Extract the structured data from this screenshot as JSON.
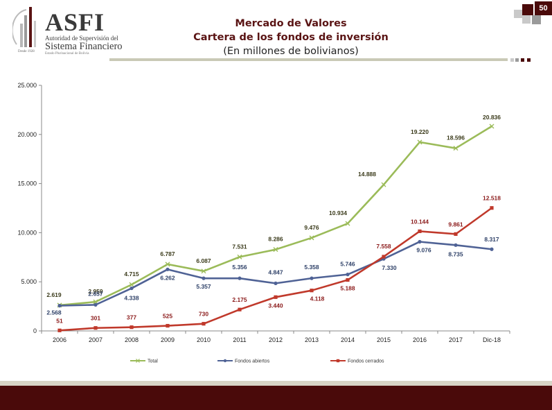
{
  "header": {
    "logo_main": "ASFI",
    "logo_sub1": "Autoridad de Supervisión del",
    "logo_sub2": "Sistema Financiero",
    "logo_sub3": "Estado Plurinacional de Bolivia",
    "logo_year": "Desde 1928",
    "title": "Mercado de Valores",
    "subtitle": "Cartera de los fondos de inversión",
    "units": "(En millones de bolivianos)",
    "page_number": "50"
  },
  "colors": {
    "total": "#9bbb59",
    "abiertos": "#4f6295",
    "cerrados": "#c0392b",
    "brand_dark": "#4a0a0a"
  },
  "chart_data": {
    "type": "line",
    "categories": [
      "2006",
      "2007",
      "2008",
      "2009",
      "2010",
      "2011",
      "2012",
      "2013",
      "2014",
      "2015",
      "2016",
      "2017",
      "Dic-18"
    ],
    "ylim": [
      0,
      25000
    ],
    "yticks": [
      0,
      5000,
      10000,
      15000,
      20000,
      25000
    ],
    "ytick_labels": [
      "0",
      "5.000",
      "10.000",
      "15.000",
      "20.000",
      "25.000"
    ],
    "grid": false,
    "legend_position": "bottom",
    "series": [
      {
        "name": "Total",
        "key": "total",
        "values": [
          2619,
          2959,
          4715,
          6787,
          6087,
          7531,
          8286,
          9476,
          10934,
          14888,
          19220,
          18596,
          20836
        ],
        "labels": [
          "2.619",
          "2.959",
          "4.715",
          "6.787",
          "6.087",
          "7.531",
          "8.286",
          "9.476",
          "10.934",
          "14.888",
          "19.220",
          "18.596",
          "20.836"
        ],
        "label_color": "#3a3a1a"
      },
      {
        "name": "Fondos abiertos",
        "key": "abiertos",
        "values": [
          2568,
          2657,
          4338,
          6262,
          5357,
          5356,
          4847,
          5358,
          5746,
          7330,
          9076,
          8735,
          8317
        ],
        "labels": [
          "2.568",
          "2.657",
          "4.338",
          "6.262",
          "5.357",
          "5.356",
          "4.847",
          "5.358",
          "5.746",
          "7.330",
          "9.076",
          "8.735",
          "8.317"
        ],
        "label_color": "#2f4168"
      },
      {
        "name": "Fondos cerrados",
        "key": "cerrados",
        "values": [
          51,
          301,
          377,
          525,
          730,
          2175,
          3440,
          4118,
          5188,
          7558,
          10144,
          9861,
          12518
        ],
        "labels": [
          "51",
          "301",
          "377",
          "525",
          "730",
          "2.175",
          "3.440",
          "4.118",
          "5.188",
          "7.558",
          "10.144",
          "9.861",
          "12.518"
        ],
        "label_color": "#8b1a1a"
      }
    ]
  }
}
